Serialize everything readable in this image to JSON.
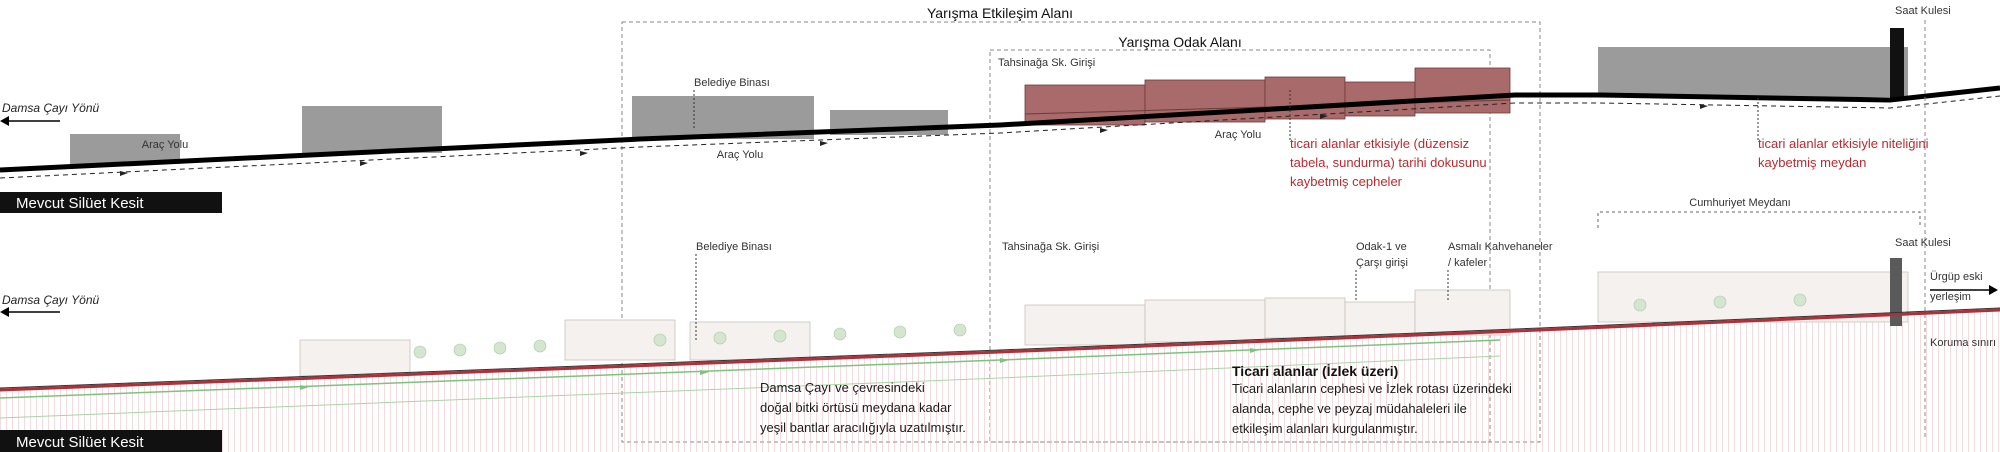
{
  "top": {
    "section_label": "Mevcut Silüet Kesit",
    "direction_left": "Damsa Çayı Yönü",
    "zone_outer": "Yarışma Etkileşim Alanı",
    "zone_inner": "Yarışma Odak Alanı",
    "label_belediye": "Belediye Binası",
    "label_tahsinaga": "Tahsinağa Sk. Girişi",
    "label_saat": "Saat Kulesi",
    "road_1": "Araç Yolu",
    "road_2": "Araç Yolu",
    "red_note_1": [
      "ticari alanlar etkisiyle (düzensiz",
      "tabela, sundurma) tarihi dokusunu",
      "kaybetmiş cepheler"
    ],
    "red_note_2": [
      "ticari alanlar etkisiyle niteliğini",
      "kaybetmiş meydan"
    ],
    "colors": {
      "grey_block": "#9b9b9b",
      "focus_block": "#a86a6a",
      "red_text": "#c0282d"
    }
  },
  "bottom": {
    "section_label": "Mevcut Silüet Kesit",
    "direction_left": "Damsa Çayı Yönü",
    "label_belediye": "Belediye Binası",
    "label_tahsinaga": "Tahsinağa Sk. Girişi",
    "label_odak": [
      "Odak-1 ve",
      "Çarşı girişi"
    ],
    "label_asmali": [
      "Asmalı Kahvehaneler",
      "/ kafeler"
    ],
    "label_cumhuriyet": "Cumhuriyet Meydanı",
    "label_saat": "Saat Kulesi",
    "label_urgup": [
      "Ürgüp eski",
      "yerleşim"
    ],
    "label_koruma": "Koruma sınırı",
    "green_note": [
      "Damsa Çayı ve çevresindeki",
      "doğal bitki örtüsü meydana kadar",
      "yeşil bantlar aracılığıyla uzatılmıştır."
    ],
    "ticari_title": "Ticari alanlar (İzlek üzeri)",
    "ticari_note": [
      "Ticari alanların cephesi ve İzlek rotası üzerindeki",
      "alanda, cephe ve peyzaj müdahaleleri ile",
      "etkileşim alanları kurgulanmıştır."
    ],
    "colors": {
      "green": "#7bc47f",
      "ground_red": "#b0303a"
    }
  }
}
